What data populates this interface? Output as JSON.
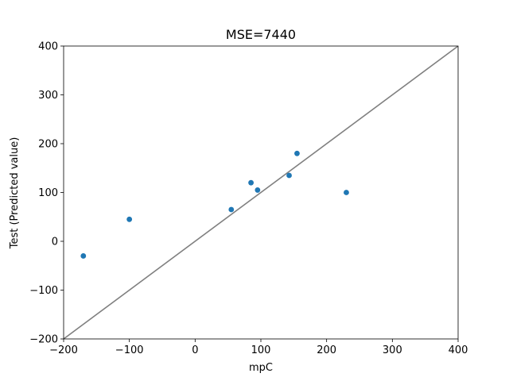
{
  "chart_data": {
    "type": "scatter",
    "title": "MSE=7440",
    "xlabel": "mpC",
    "ylabel": "Test (Predicted value)",
    "xlim": [
      -200,
      400
    ],
    "ylim": [
      -200,
      400
    ],
    "xticks": [
      -200,
      -100,
      0,
      100,
      200,
      300,
      400
    ],
    "yticks": [
      -200,
      -100,
      0,
      100,
      200,
      300,
      400
    ],
    "xtick_labels": [
      "−200",
      "−100",
      "0",
      "100",
      "200",
      "300",
      "400"
    ],
    "ytick_labels": [
      "−200",
      "−100",
      "0",
      "100",
      "200",
      "300",
      "400"
    ],
    "grid": false,
    "series": [
      {
        "x": [
          -170,
          -100,
          55,
          85,
          95,
          143,
          155,
          230
        ],
        "y": [
          -30,
          45,
          65,
          120,
          105,
          135,
          180,
          100
        ],
        "color": "#1f77b4"
      }
    ],
    "reference_line": {
      "x": [
        -200,
        400
      ],
      "y": [
        -200,
        400
      ],
      "color": "#808080"
    }
  }
}
